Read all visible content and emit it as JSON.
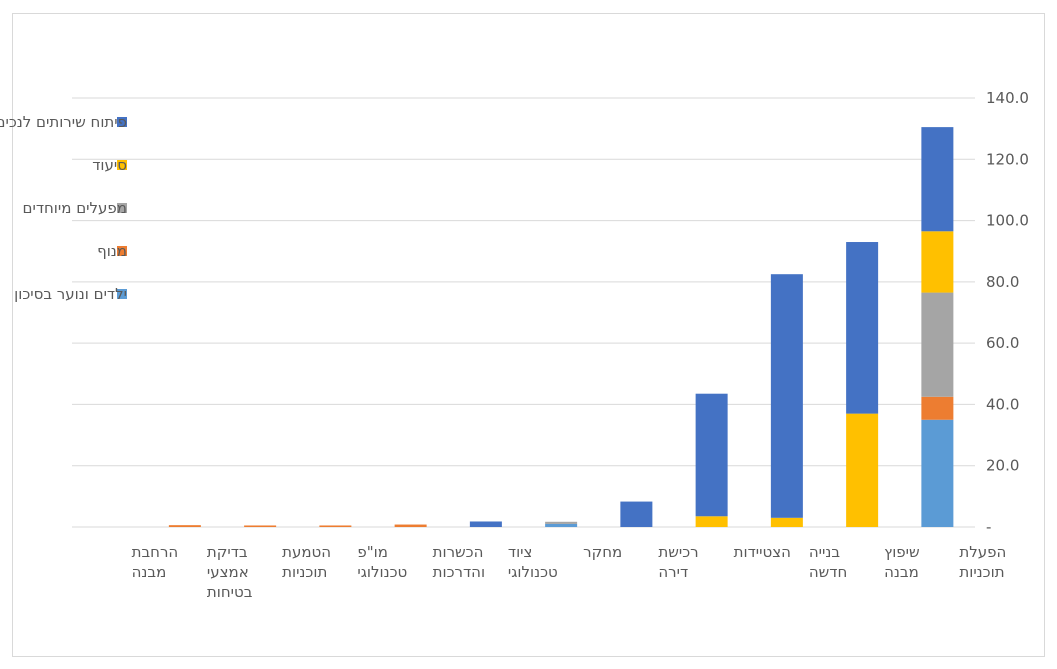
{
  "chart_data": {
    "type": "bar",
    "stacked": true,
    "direction": "rtl",
    "categories": [
      [
        "הפעלת",
        "תוכניות"
      ],
      [
        "שיפוץ",
        "מבנה"
      ],
      [
        "בנייה",
        "חדשה"
      ],
      [
        "הצטיידות"
      ],
      [
        "רכישת",
        "דירה"
      ],
      [
        "מחקר"
      ],
      [
        "ציוד",
        "טכנולוגי"
      ],
      [
        "הכשרות",
        "והדרכות"
      ],
      [
        "מו\"פ",
        "טכנולוגי"
      ],
      [
        "הטמעת",
        "תוכניות"
      ],
      [
        "בדיקת",
        "אמצעי",
        "בטיחות"
      ],
      [
        "הרחבת",
        "מבנה"
      ]
    ],
    "series": [
      {
        "name": "ילדים ונוער בסיכון",
        "color": "#5b9bd5",
        "values": [
          35,
          0,
          0,
          0,
          0,
          1.0,
          0,
          0,
          0,
          0,
          0,
          0
        ]
      },
      {
        "name": "מנוף",
        "color": "#ed7d31",
        "values": [
          7.5,
          0,
          0,
          0,
          0,
          0,
          0,
          0.8,
          0.5,
          0.5,
          0.6,
          0
        ]
      },
      {
        "name": "מפעלים מיוחדים",
        "color": "#a5a5a5",
        "values": [
          34,
          0,
          0,
          0,
          0,
          0.7,
          0,
          0,
          0,
          0,
          0,
          0
        ]
      },
      {
        "name": "סיעוד",
        "color": "#ffc000",
        "values": [
          20,
          37,
          3,
          3.5,
          0,
          0,
          0,
          0,
          0,
          0,
          0,
          0
        ]
      },
      {
        "name": "פיתוח שירותים לנכים",
        "color": "#4472c4",
        "values": [
          34,
          56,
          79.5,
          40,
          8.3,
          0,
          1.8,
          0,
          0,
          0,
          0,
          0
        ]
      }
    ],
    "y_ticks": [
      "-",
      "20.0",
      "40.0",
      "60.0",
      "80.0",
      "100.0",
      "120.0",
      "140.0"
    ],
    "ylim": [
      0,
      140
    ],
    "ystep": 20,
    "grid": true,
    "legend_position": "top-left"
  }
}
